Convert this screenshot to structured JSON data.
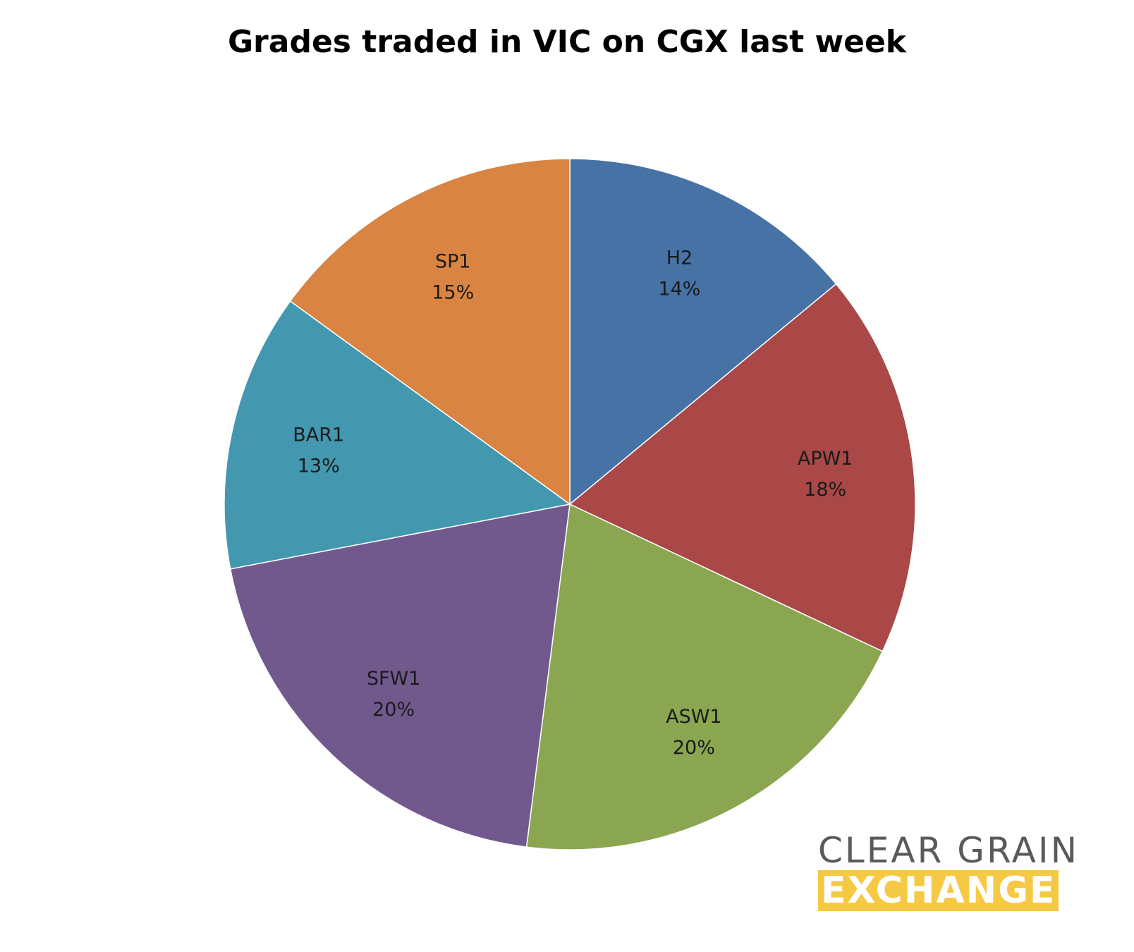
{
  "chart_data": {
    "type": "pie",
    "title": "Grades traded in VIC on CGX last week",
    "start_angle": "12 o'clock",
    "direction": "clockwise",
    "slices": [
      {
        "label": "H2",
        "value": 14,
        "value_label": "14%",
        "color": "#4672a6"
      },
      {
        "label": "APW1",
        "value": 18,
        "value_label": "18%",
        "color": "#a94846"
      },
      {
        "label": "ASW1",
        "value": 20,
        "value_label": "20%",
        "color": "#8aa651"
      },
      {
        "label": "SFW1",
        "value": 20,
        "value_label": "20%",
        "color": "#71598d"
      },
      {
        "label": "BAR1",
        "value": 13,
        "value_label": "13%",
        "color": "#4398b0"
      },
      {
        "label": "SP1",
        "value": 15,
        "value_label": "15%",
        "color": "#d98442"
      }
    ]
  },
  "logo": {
    "line1": "CLEAR GRAIN",
    "line2": "EXCHANGE",
    "text_color": "#595a5c",
    "accent_color": "#f6c945"
  }
}
